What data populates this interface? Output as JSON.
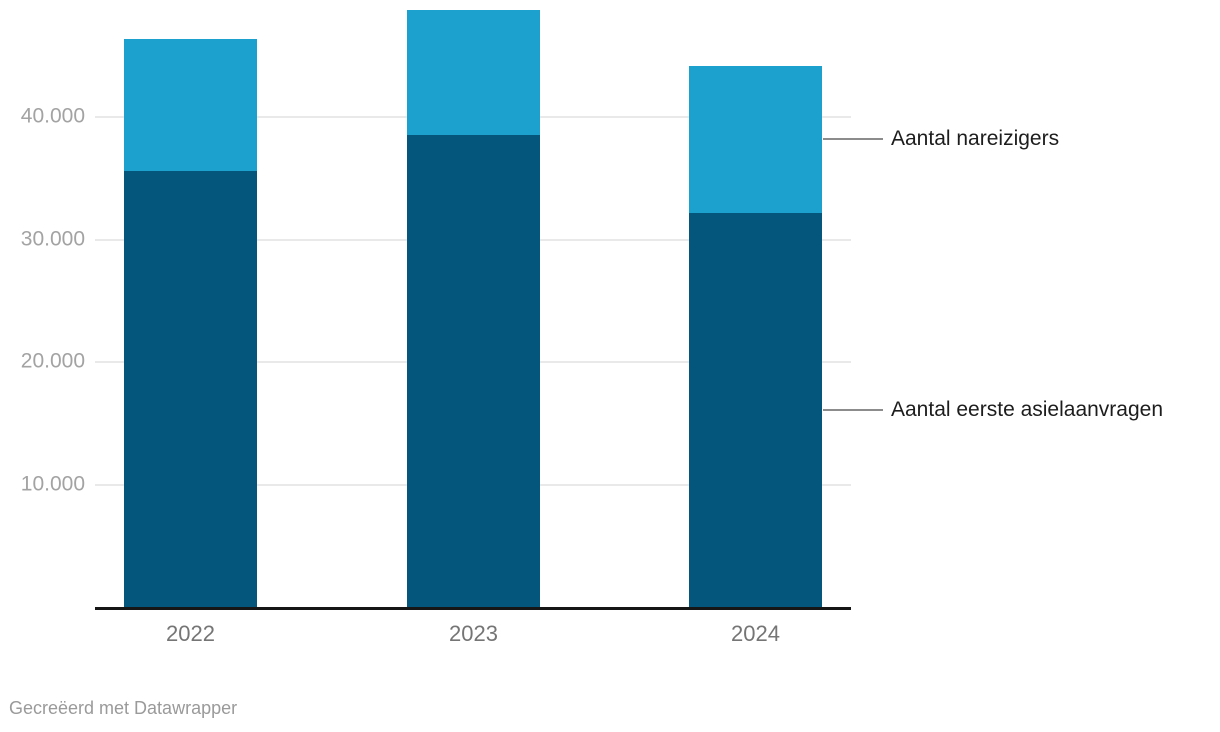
{
  "chart_data": {
    "type": "bar",
    "stacked": true,
    "title": "",
    "xlabel": "",
    "ylabel": "",
    "categories": [
      "2022",
      "2023",
      "2024"
    ],
    "series": [
      {
        "name": "Aantal eerste asielaanvragen",
        "color": "#05567d",
        "values": [
          35600,
          38500,
          32200
        ]
      },
      {
        "name": "Aantal nareizigers",
        "color": "#1ca0cd",
        "values": [
          10800,
          10200,
          12000
        ]
      }
    ],
    "totals": [
      46400,
      48700,
      44200
    ],
    "ylim": [
      0,
      49600
    ],
    "grid": true,
    "y_ticks": [
      {
        "value": 10000,
        "label": "10.000"
      },
      {
        "value": 20000,
        "label": "20.000"
      },
      {
        "value": 30000,
        "label": "30.000"
      },
      {
        "value": 40000,
        "label": "40.000"
      }
    ],
    "legend_position": "right-annotations",
    "annotations": [
      {
        "label": "Aantal nareizigers",
        "points_to": "top segment of 2024 bar"
      },
      {
        "label": "Aantal eerste asielaanvragen",
        "points_to": "bottom segment of 2024 bar"
      }
    ]
  },
  "colors": {
    "background": "#ffffff",
    "axis_line": "#161616",
    "gridline": "#e9e9e9",
    "y_tick_label": "#a3a3a3",
    "x_tick_label": "#757575",
    "annotation_text": "#1d1d1d",
    "leader_line": "#8c8c8c",
    "credit_text": "#9a9a9a"
  },
  "footer": {
    "credit": "Gecreëerd met Datawrapper"
  }
}
